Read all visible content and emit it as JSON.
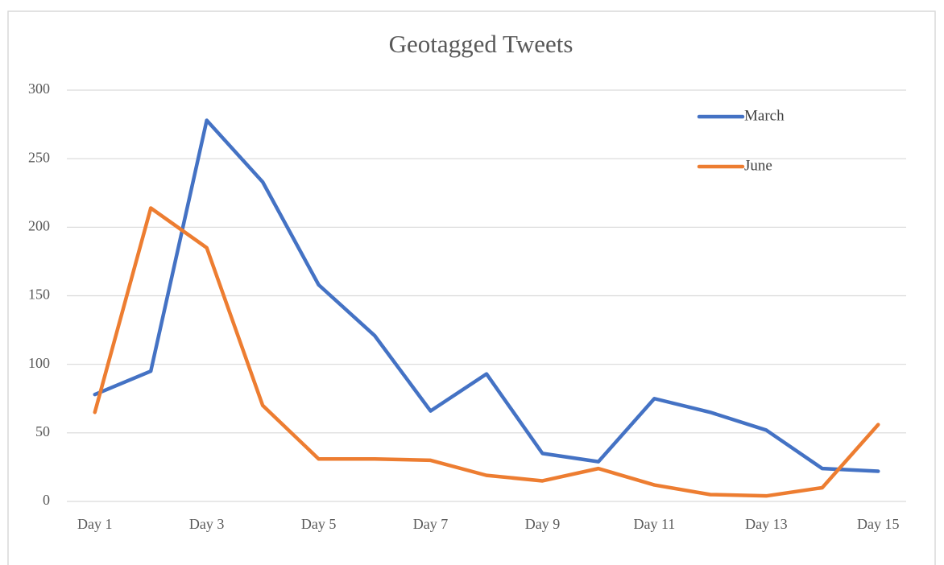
{
  "chart_data": {
    "type": "line",
    "title": "Geotagged Tweets",
    "categories": [
      "Day 1",
      null,
      "Day 3",
      null,
      "Day 5",
      null,
      "Day 7",
      null,
      "Day 9",
      null,
      "Day 11",
      null,
      "Day 13",
      null,
      "Day 15"
    ],
    "series": [
      {
        "name": "March",
        "color": "#4472c4",
        "values": [
          78,
          95,
          278,
          233,
          158,
          121,
          66,
          93,
          35,
          29,
          75,
          65,
          52,
          24,
          22
        ]
      },
      {
        "name": "June",
        "color": "#ed7d31",
        "values": [
          65,
          214,
          185,
          70,
          31,
          31,
          30,
          19,
          15,
          24,
          12,
          5,
          4,
          10,
          56
        ]
      }
    ],
    "ylim": [
      0,
      300
    ],
    "yticks": [
      0,
      50,
      100,
      150,
      200,
      250,
      300
    ],
    "grid": true
  }
}
